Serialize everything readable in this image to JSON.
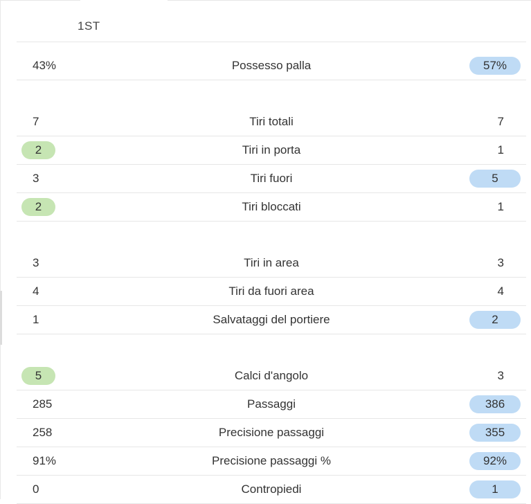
{
  "tab": {
    "label": "1ST"
  },
  "colors": {
    "home_highlight": "#c6e5b3",
    "away_highlight": "#bfdbf5"
  },
  "stats": [
    {
      "home": "43%",
      "label": "Possesso palla",
      "away": "57%",
      "highlight": "away"
    },
    {
      "home": "7",
      "label": "Tiri totali",
      "away": "7",
      "highlight": "none"
    },
    {
      "home": "2",
      "label": "Tiri in porta",
      "away": "1",
      "highlight": "home"
    },
    {
      "home": "3",
      "label": "Tiri fuori",
      "away": "5",
      "highlight": "away"
    },
    {
      "home": "2",
      "label": "Tiri bloccati",
      "away": "1",
      "highlight": "home"
    },
    {
      "home": "3",
      "label": "Tiri in area",
      "away": "3",
      "highlight": "none"
    },
    {
      "home": "4",
      "label": "Tiri da fuori area",
      "away": "4",
      "highlight": "none"
    },
    {
      "home": "1",
      "label": "Salvataggi del portiere",
      "away": "2",
      "highlight": "away"
    },
    {
      "home": "5",
      "label": "Calci d'angolo",
      "away": "3",
      "highlight": "home"
    },
    {
      "home": "285",
      "label": "Passaggi",
      "away": "386",
      "highlight": "away"
    },
    {
      "home": "258",
      "label": "Precisione passaggi",
      "away": "355",
      "highlight": "away"
    },
    {
      "home": "91%",
      "label": "Precisione passaggi %",
      "away": "92%",
      "highlight": "away"
    },
    {
      "home": "0",
      "label": "Contropiedi",
      "away": "1",
      "highlight": "away"
    }
  ]
}
